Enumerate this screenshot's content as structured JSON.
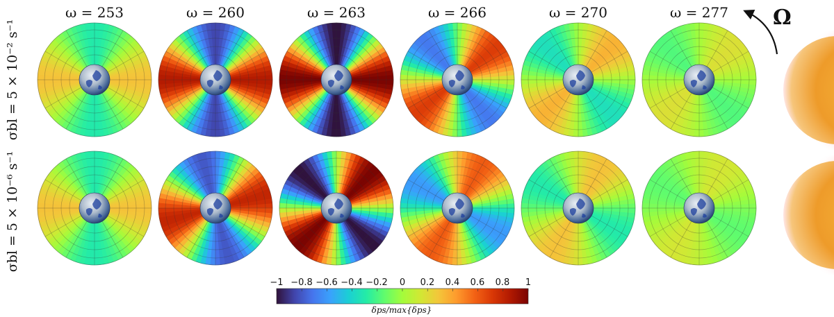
{
  "columns": [
    {
      "label": "ω = 253"
    },
    {
      "label": "ω = 260"
    },
    {
      "label": "ω = 263"
    },
    {
      "label": "ω = 266"
    },
    {
      "label": "ω = 270"
    },
    {
      "label": "ω = 277"
    }
  ],
  "rows": [
    {
      "label": "σbl = 5 × 10⁻² s⁻¹"
    },
    {
      "label": "σbl = 5 × 10⁻⁶ s⁻¹"
    }
  ],
  "rotation_symbol": "Ω",
  "colorbar": {
    "ticks": [
      "−1",
      "−0.8",
      "−0.6",
      "−0.4",
      "−0.2",
      "0",
      "0.2",
      "0.4",
      "0.6",
      "0.8",
      "1"
    ],
    "label": "δps/max{δps}",
    "range": [
      -1,
      1
    ],
    "colormap": [
      "#30123b",
      "#4145ab",
      "#4675ed",
      "#39a2fc",
      "#1bcfd4",
      "#24eca6",
      "#61fc6c",
      "#a4fc3b",
      "#d1e834",
      "#f3c63a",
      "#fe9b2d",
      "#f36315",
      "#d93806",
      "#b11901",
      "#7a0402"
    ]
  },
  "panels": [
    [
      {
        "amplitude": 0.3,
        "phase_deg": 0
      },
      {
        "amplitude": 0.85,
        "phase_deg": 0
      },
      {
        "amplitude": 1.0,
        "phase_deg": 0
      },
      {
        "amplitude": 0.7,
        "phase_deg": 40
      },
      {
        "amplitude": 0.35,
        "phase_deg": 45
      },
      {
        "amplitude": 0.18,
        "phase_deg": 45
      }
    ],
    [
      {
        "amplitude": 0.3,
        "phase_deg": 0
      },
      {
        "amplitude": 0.8,
        "phase_deg": 15
      },
      {
        "amplitude": 1.0,
        "phase_deg": 45
      },
      {
        "amplitude": 0.6,
        "phase_deg": 60
      },
      {
        "amplitude": 0.3,
        "phase_deg": 60
      },
      {
        "amplitude": 0.15,
        "phase_deg": 60
      }
    ]
  ]
}
